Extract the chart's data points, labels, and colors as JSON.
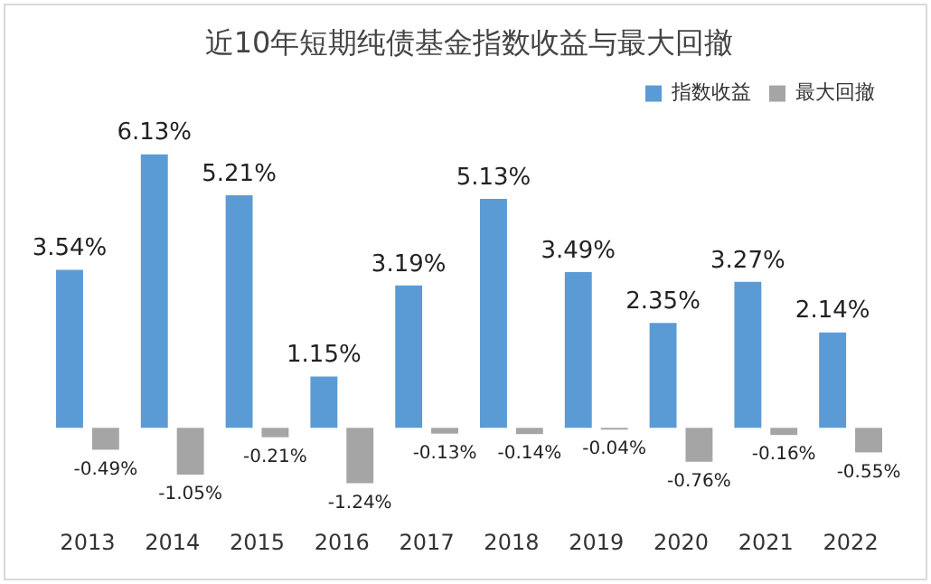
{
  "chart_data": {
    "type": "bar",
    "title": "近10年短期纯债基金指数收益与最大回撤",
    "categories": [
      "2013",
      "2014",
      "2015",
      "2016",
      "2017",
      "2018",
      "2019",
      "2020",
      "2021",
      "2022"
    ],
    "series": [
      {
        "name": "指数收益",
        "color": "#5b9bd5",
        "values": [
          3.54,
          6.13,
          5.21,
          1.15,
          3.19,
          5.13,
          3.49,
          2.35,
          3.27,
          2.14
        ],
        "value_labels": [
          "3.54%",
          "6.13%",
          "5.21%",
          "1.15%",
          "3.19%",
          "5.13%",
          "3.49%",
          "2.35%",
          "3.27%",
          "2.14%"
        ]
      },
      {
        "name": "最大回撤",
        "color": "#a5a5a5",
        "values": [
          -0.49,
          -1.05,
          -0.21,
          -1.24,
          -0.13,
          -0.14,
          -0.04,
          -0.76,
          -0.16,
          -0.55
        ],
        "value_labels": [
          "-0.49%",
          "-1.05%",
          "-0.21%",
          "-1.24%",
          "-0.13%",
          "-0.14%",
          "-0.04%",
          "-0.76%",
          "-0.16%",
          "-0.55%"
        ]
      }
    ],
    "legend": "top right",
    "grid": false
  }
}
